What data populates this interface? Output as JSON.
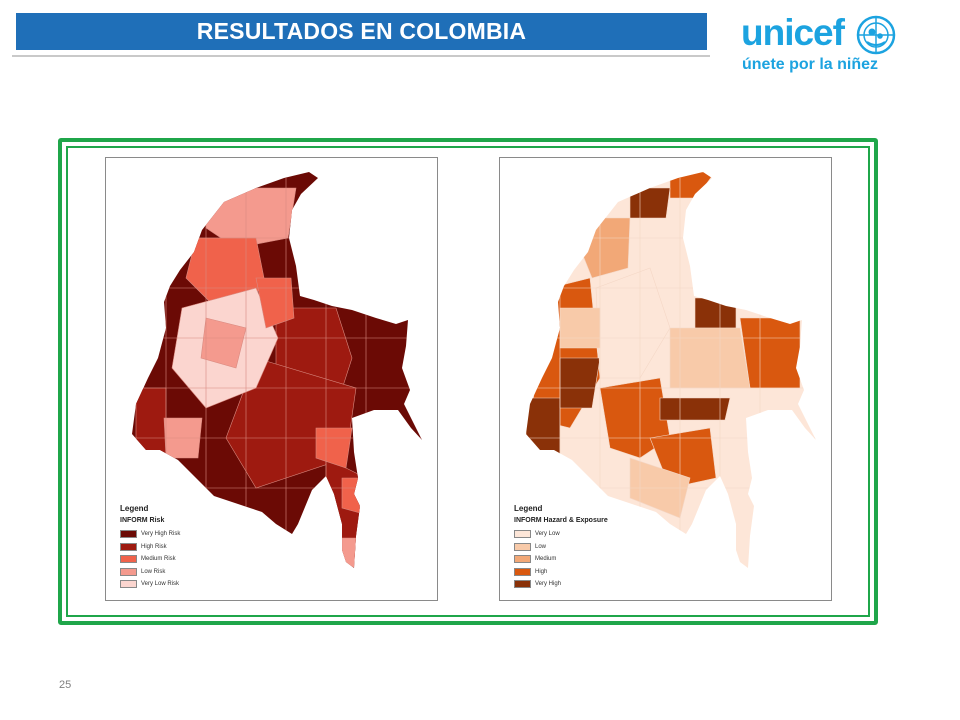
{
  "slide": {
    "title": "RESULTADOS EN COLOMBIA",
    "page_number": "25",
    "title_bar_color": "#1f6fb8",
    "frame_color": "#1fa64a"
  },
  "logo": {
    "word": "unicef",
    "tagline": "únete por la niñez",
    "color": "#1ca3e0",
    "emblem_icon": "unicef-emblem-icon"
  },
  "maps": [
    {
      "id": "inform-risk",
      "legend_heading": "Legend",
      "legend_title": "INFORM Risk",
      "classes": [
        {
          "label": "Very High Risk",
          "color": "#6b0a05"
        },
        {
          "label": "High Risk",
          "color": "#9e1a10"
        },
        {
          "label": "Medium Risk",
          "color": "#f0624b"
        },
        {
          "label": "Low Risk",
          "color": "#f49a8e"
        },
        {
          "label": "Very Low Risk",
          "color": "#fbd5cf"
        }
      ]
    },
    {
      "id": "inform-hazard-exposure",
      "legend_heading": "Legend",
      "legend_title": "INFORM Hazard & Exposure",
      "classes": [
        {
          "label": "Very Low",
          "color": "#fde6d8"
        },
        {
          "label": "Low",
          "color": "#f8caa9"
        },
        {
          "label": "Medium",
          "color": "#f2a877"
        },
        {
          "label": "High",
          "color": "#d9580f"
        },
        {
          "label": "Very High",
          "color": "#8a3108"
        }
      ]
    }
  ]
}
